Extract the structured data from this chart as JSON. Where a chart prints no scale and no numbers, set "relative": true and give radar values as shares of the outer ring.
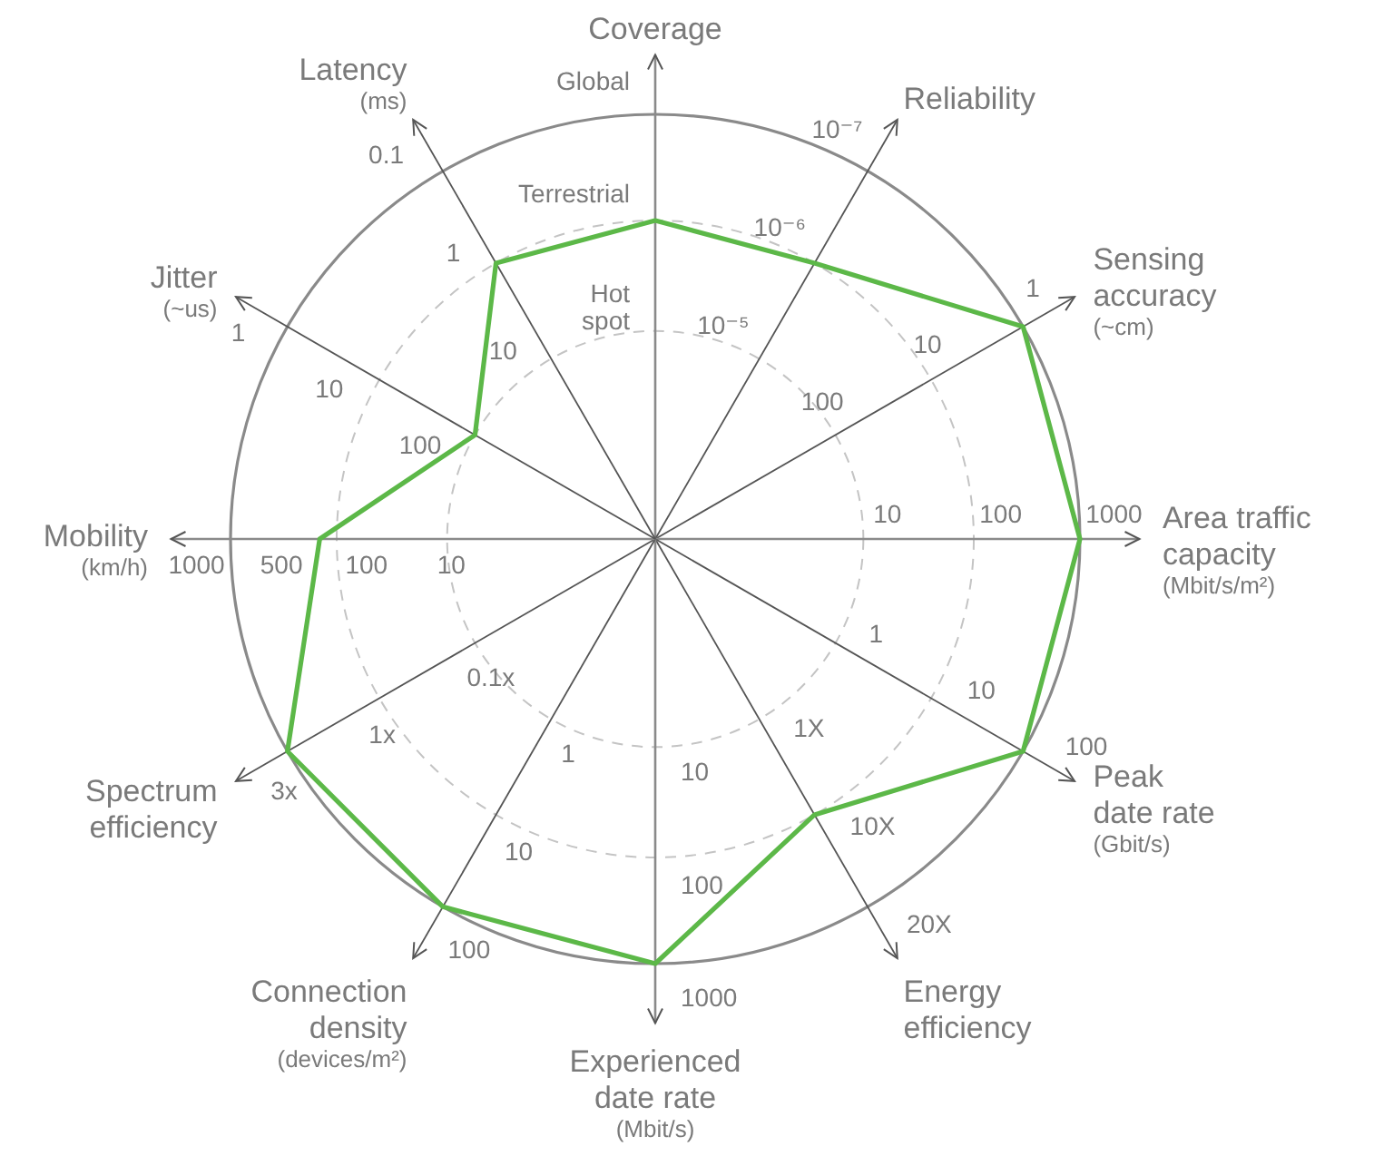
{
  "chart_data": {
    "type": "radar",
    "relative": true,
    "marker": "none",
    "grid": true,
    "categories": [
      "Coverage",
      "Reliability",
      "Sensing accuracy (~cm)",
      "Area traffic capacity (Mbit/s/m²)",
      "Peak date rate (Gbit/s)",
      "Energy efficiency",
      "Experienced date rate (Mbit/s)",
      "Connection density (devices/m²)",
      "Spectrum efficiency",
      "Mobility (km/h)",
      "Jitter (~us)",
      "Latency (ms)"
    ],
    "series": [
      {
        "color": "#5cb848",
        "values": [
          0.75,
          0.75,
          1,
          1,
          1,
          0.75,
          1,
          1,
          1,
          0.79,
          0.49,
          0.75
        ]
      }
    ],
    "annotations": [
      {
        "text": "Hot spot",
        "x": "Coverage"
      },
      {
        "text": "Terrestrial",
        "x": "Coverage"
      },
      {
        "text": "Global",
        "x": "Coverage"
      },
      {
        "text": "10⁻⁵",
        "x": "Reliability"
      },
      {
        "text": "10⁻⁶",
        "x": "Reliability"
      },
      {
        "text": "10⁻⁷",
        "x": "Reliability"
      },
      {
        "text": "100",
        "x": "Sensing accuracy (~cm)"
      },
      {
        "text": "10",
        "x": "Sensing accuracy (~cm)"
      },
      {
        "text": "1",
        "x": "Sensing accuracy (~cm)"
      },
      {
        "text": "10",
        "x": "Area traffic capacity (Mbit/s/m²)"
      },
      {
        "text": "100",
        "x": "Area traffic capacity (Mbit/s/m²)"
      },
      {
        "text": "1000",
        "x": "Area traffic capacity (Mbit/s/m²)"
      },
      {
        "text": "1",
        "x": "Peak date rate (Gbit/s)"
      },
      {
        "text": "10",
        "x": "Peak date rate (Gbit/s)"
      },
      {
        "text": "100",
        "x": "Peak date rate (Gbit/s)"
      },
      {
        "text": "1X",
        "x": "Energy efficiency"
      },
      {
        "text": "10X",
        "x": "Energy efficiency"
      },
      {
        "text": "20X",
        "x": "Energy efficiency"
      },
      {
        "text": "10",
        "x": "Experienced date rate (Mbit/s)"
      },
      {
        "text": "100",
        "x": "Experienced date rate (Mbit/s)"
      },
      {
        "text": "1000",
        "x": "Experienced date rate (Mbit/s)"
      },
      {
        "text": "1",
        "x": "Connection density (devices/m²)"
      },
      {
        "text": "10",
        "x": "Connection density (devices/m²)"
      },
      {
        "text": "100",
        "x": "Connection density (devices/m²)"
      },
      {
        "text": "0.1x",
        "x": "Spectrum efficiency"
      },
      {
        "text": "1x",
        "x": "Spectrum efficiency"
      },
      {
        "text": "3x",
        "x": "Spectrum efficiency"
      },
      {
        "text": "10",
        "x": "Mobility (km/h)"
      },
      {
        "text": "100",
        "x": "Mobility (km/h)"
      },
      {
        "text": "500",
        "x": "Mobility (km/h)"
      },
      {
        "text": "1000",
        "x": "Mobility (km/h)"
      },
      {
        "text": "100",
        "x": "Jitter (~us)"
      },
      {
        "text": "10",
        "x": "Jitter (~us)"
      },
      {
        "text": "1",
        "x": "Jitter (~us)"
      },
      {
        "text": "10",
        "x": "Latency (ms)"
      },
      {
        "text": "1",
        "x": "Latency (ms)"
      },
      {
        "text": "0.1",
        "x": "Latency (ms)"
      }
    ]
  }
}
